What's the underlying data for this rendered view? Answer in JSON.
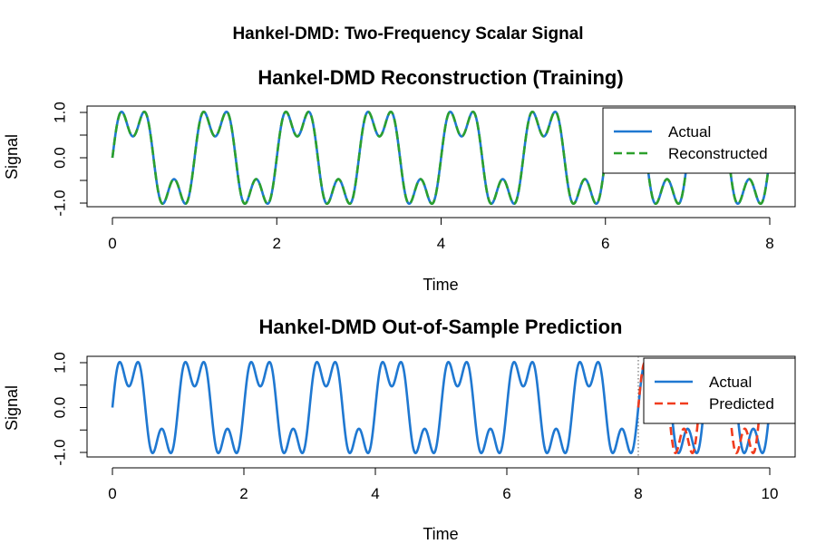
{
  "figure": {
    "title": "Hankel-DMD: Two-Frequency Scalar Signal"
  },
  "chart_data": [
    {
      "type": "line",
      "title": "Hankel-DMD Reconstruction (Training)",
      "xlabel": "Time",
      "ylabel": "Signal",
      "xlim": [
        0,
        8
      ],
      "ylim": [
        -1.0,
        1.0
      ],
      "x_ticks": [
        "0",
        "2",
        "4",
        "6",
        "8"
      ],
      "x_tick_values": [
        0,
        2,
        4,
        6,
        8
      ],
      "y_ticks": [
        "-1.0",
        "0.0",
        "1.0"
      ],
      "y_tick_values": [
        -1.0,
        0.0,
        1.0
      ],
      "y_minor_ticks": [
        -0.5,
        0.5
      ],
      "grid": false,
      "legend_position": "top-right",
      "signal": "sin(2*pi*t) + 0.5*sin(2*pi*3*t), normalized to peak 1",
      "series": [
        {
          "name": "Actual",
          "color": "#1f78d1",
          "style": "solid",
          "x_range": [
            0,
            8
          ]
        },
        {
          "name": "Reconstructed",
          "color": "#2ca02c",
          "style": "dashed",
          "x_range": [
            0,
            8
          ]
        }
      ]
    },
    {
      "type": "line",
      "title": "Hankel-DMD Out-of-Sample Prediction",
      "xlabel": "Time",
      "ylabel": "Signal",
      "xlim": [
        0,
        10
      ],
      "ylim": [
        -1.0,
        1.0
      ],
      "x_ticks": [
        "0",
        "2",
        "4",
        "6",
        "8",
        "10"
      ],
      "x_tick_values": [
        0,
        2,
        4,
        6,
        8,
        10
      ],
      "y_ticks": [
        "-1.0",
        "0.0",
        "1.0"
      ],
      "y_tick_values": [
        -1.0,
        0.0,
        1.0
      ],
      "y_minor_ticks": [
        -0.5,
        0.5
      ],
      "grid": false,
      "legend_position": "top-right",
      "split_time": 8,
      "series": [
        {
          "name": "Actual",
          "color": "#1f78d1",
          "style": "solid",
          "x_range": [
            0,
            10
          ]
        },
        {
          "name": "Predicted",
          "color": "#f03c1e",
          "style": "dashed",
          "x_range": [
            8,
            10
          ],
          "frequency_scale": 1.08
        }
      ]
    }
  ]
}
